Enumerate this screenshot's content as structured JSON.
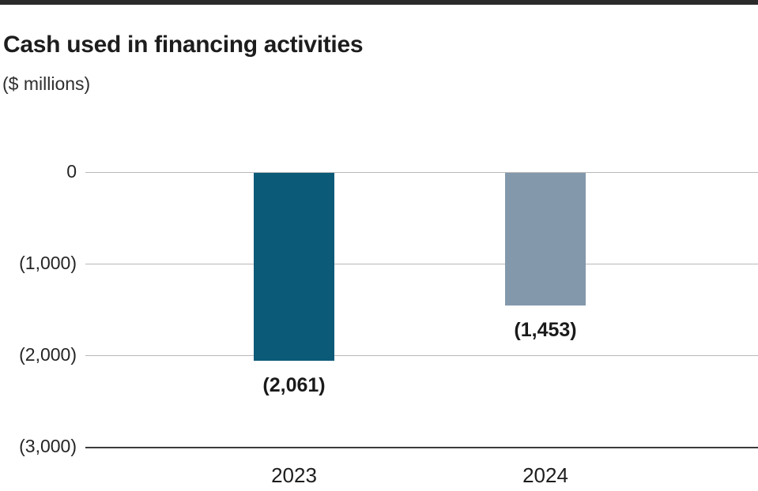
{
  "page": {
    "title": "Cash used in financing activities",
    "subtitle": "($ millions)"
  },
  "chart_data": {
    "type": "bar",
    "title": "Cash used in financing activities",
    "subtitle": "($ millions)",
    "unit": "$ millions",
    "categories": [
      "2023",
      "2024"
    ],
    "values": [
      -2061,
      -1453
    ],
    "value_labels": [
      "(2,061)",
      "(1,453)"
    ],
    "series_colors": [
      "#0a5a78",
      "#8498ab"
    ],
    "ylim": [
      -3000,
      0
    ],
    "yticks": [
      {
        "value": 0,
        "label": "0"
      },
      {
        "value": -1000,
        "label": "(1,000)"
      },
      {
        "value": -2000,
        "label": "(2,000)"
      },
      {
        "value": -3000,
        "label": "(3,000)"
      }
    ],
    "grid": true,
    "legend": false,
    "gridline_color": "#b9b9b9",
    "axis_line_color": "#3c3c3c",
    "top_rule_color": "#2a2a2a"
  }
}
